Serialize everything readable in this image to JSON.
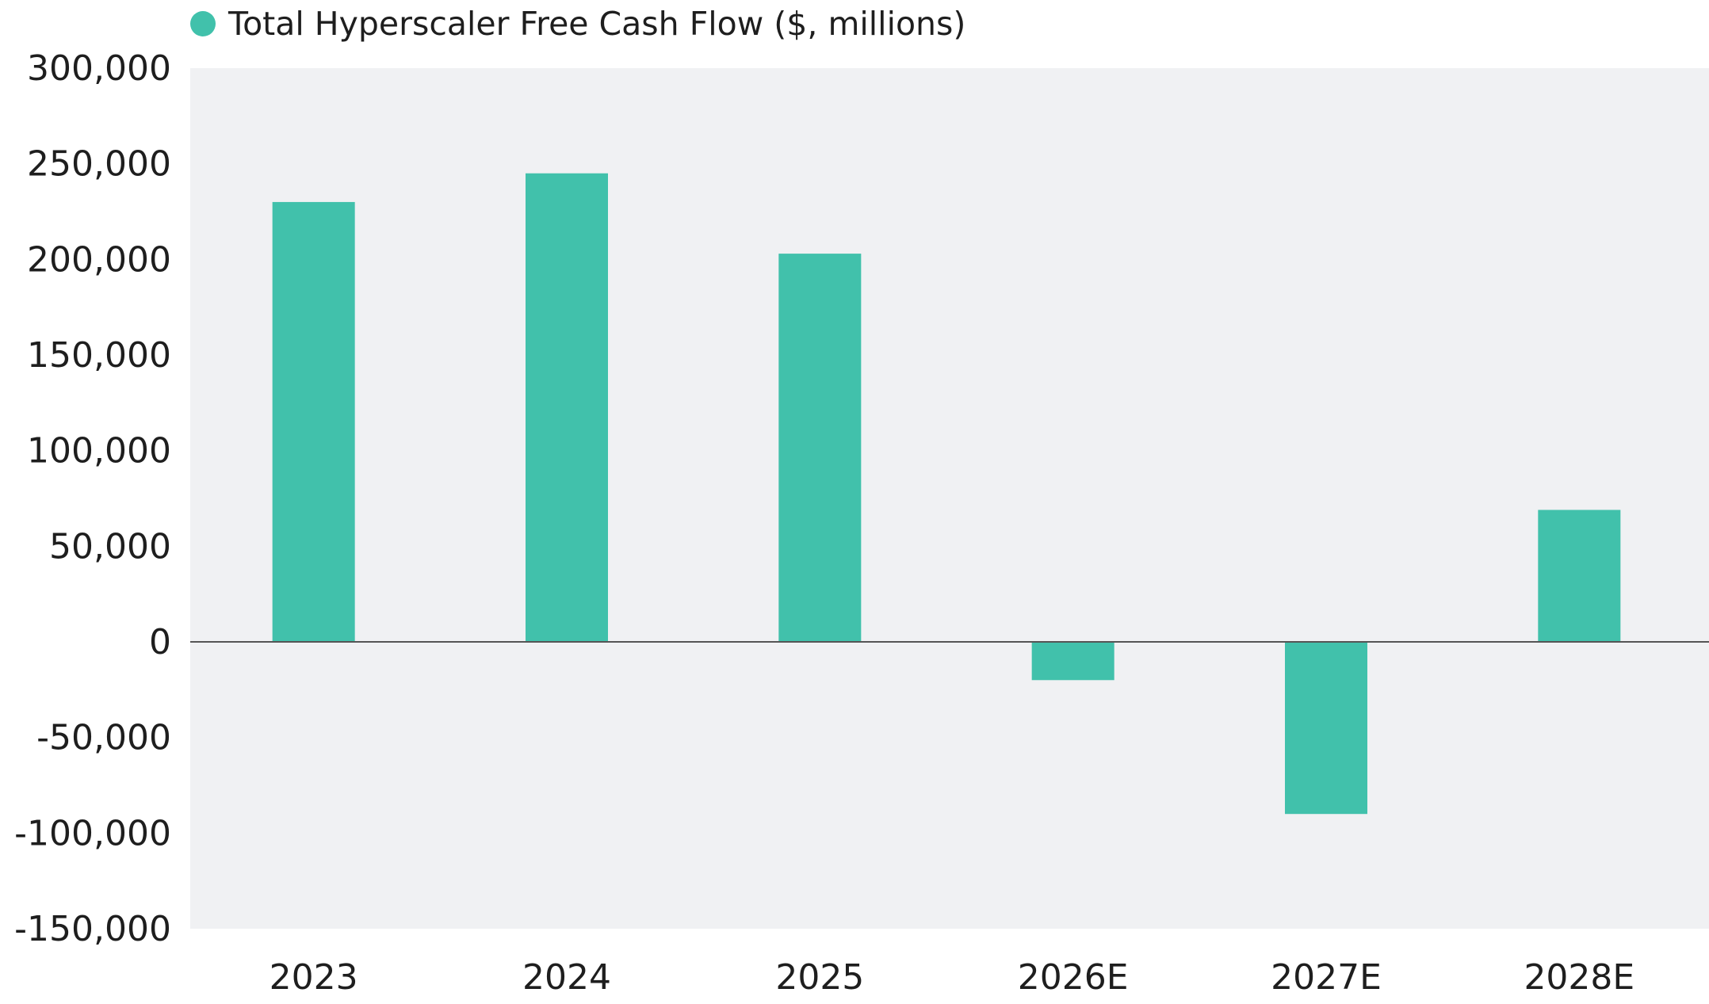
{
  "chart_data": {
    "type": "bar",
    "categories": [
      "2023",
      "2024",
      "2025",
      "2026E",
      "2027E",
      "2028E"
    ],
    "series": [
      {
        "name": "Total Hyperscaler Free Cash Flow ($, millions)",
        "values": [
          230000,
          245000,
          203000,
          -20000,
          -90000,
          69000
        ]
      }
    ],
    "y_ticks": [
      "300,000",
      "250,000",
      "200,000",
      "150,000",
      "100,000",
      "50,000",
      "0",
      "-50,000",
      "-100,000",
      "-150,000"
    ],
    "ylim": [
      -150000,
      300000
    ],
    "legend_position": "top-left",
    "grid": false,
    "colors": {
      "bar": "#41c1ab",
      "plot_background": "#f0f1f3",
      "zero_line": "#555555",
      "text": "#1e1e1e"
    }
  }
}
